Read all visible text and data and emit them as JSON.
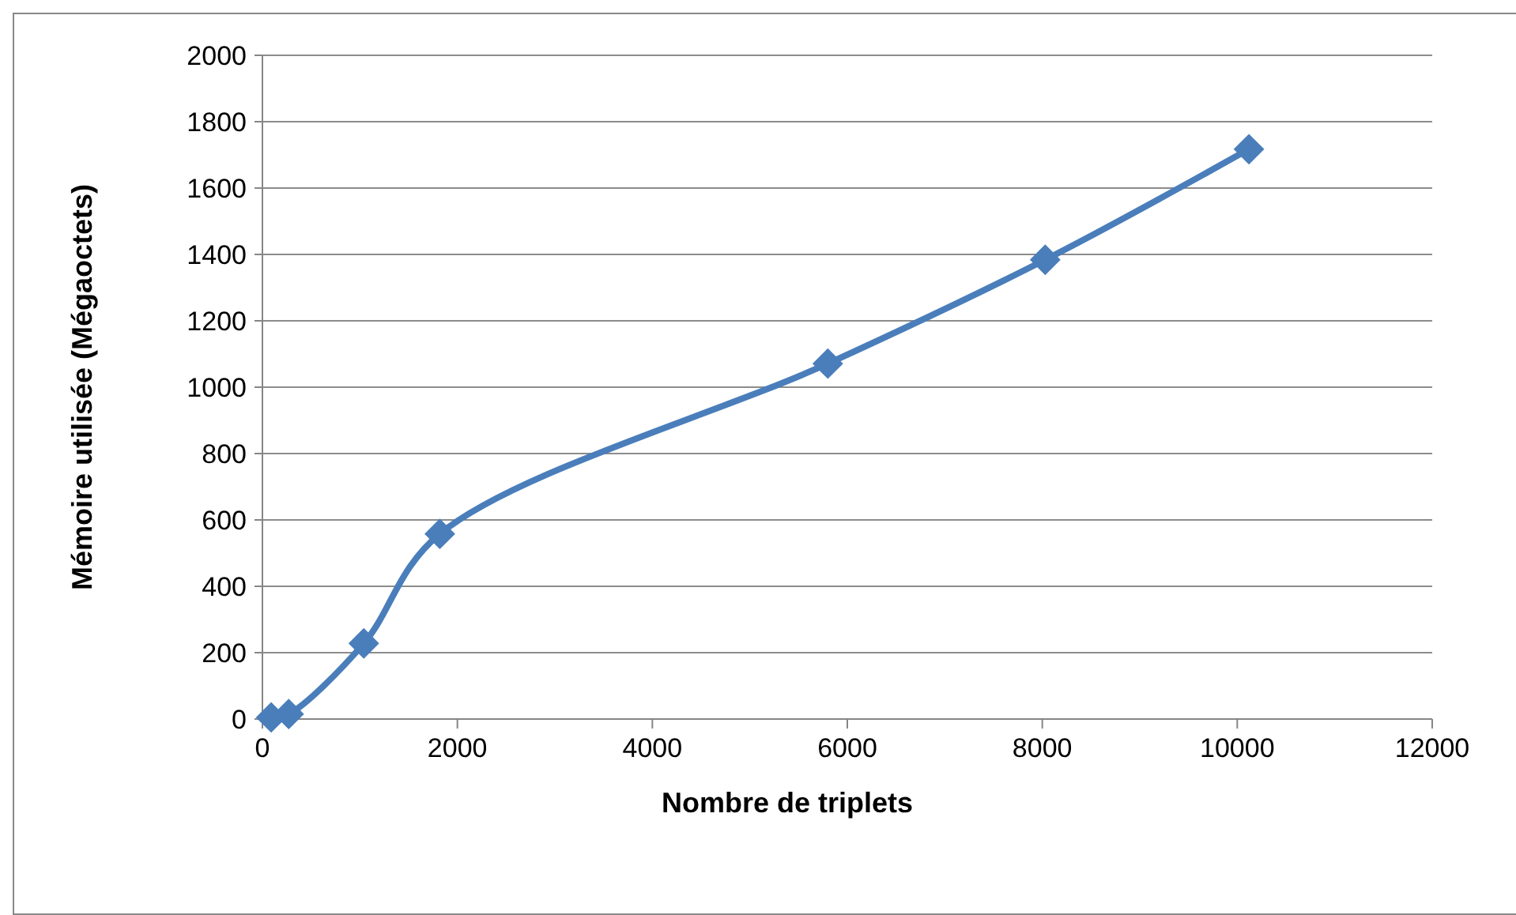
{
  "chart_data": {
    "type": "line",
    "xlabel": "Nombre de triplets",
    "ylabel": "Mémoire utilisée (Mégaoctets)",
    "x": [
      90,
      270,
      1040,
      1820,
      5800,
      8030,
      10120
    ],
    "series": [
      {
        "color": "#4a7ebb",
        "values": [
          5,
          15,
          228,
          558,
          1071,
          1384,
          1717
        ]
      }
    ],
    "xlim": [
      0,
      12000
    ],
    "xticks": [
      0,
      2000,
      4000,
      6000,
      8000,
      10000,
      12000
    ],
    "ylim": [
      0,
      2000
    ],
    "yticks": [
      0,
      200,
      400,
      600,
      800,
      1000,
      1200,
      1400,
      1600,
      1800,
      2000
    ],
    "grid": "y",
    "marker": "diamond",
    "line_style": "solid"
  }
}
